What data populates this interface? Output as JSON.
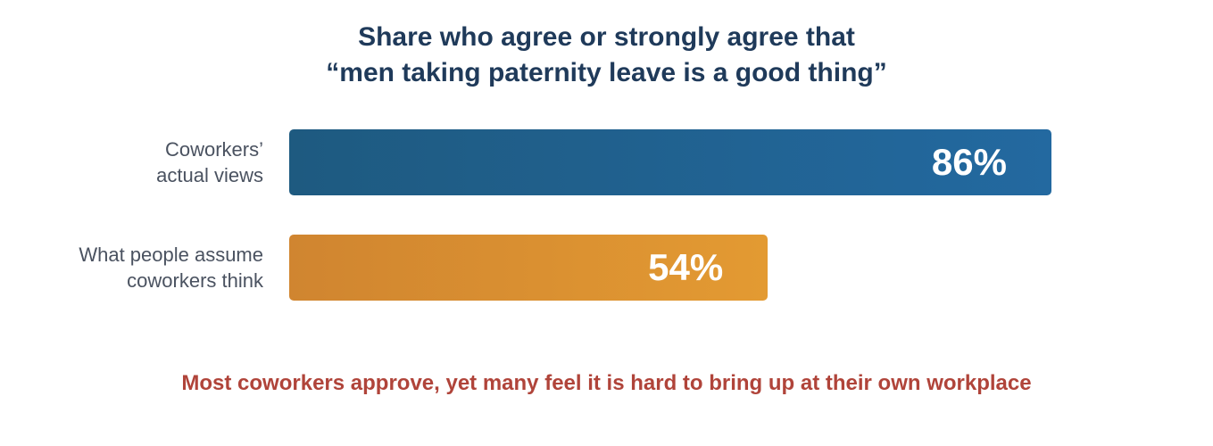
{
  "chart_data": {
    "type": "bar",
    "orientation": "horizontal",
    "title": [
      "Share who agree or strongly agree that",
      "“men taking paternity leave is a good thing”"
    ],
    "categories": [
      [
        "Coworkers’",
        "actual views"
      ],
      [
        "What people assume",
        "coworkers think"
      ]
    ],
    "values": [
      86,
      54
    ],
    "value_labels": [
      "86%",
      "54%"
    ],
    "xlim": [
      0,
      100
    ],
    "grid": false,
    "legend": "none",
    "annotation": "Most coworkers approve, yet many feel it is hard to bring up at their own workplace"
  },
  "colors": {
    "title": "#1f3a5a",
    "label": "#4a5260",
    "annotation": "#b0443a",
    "bars": [
      {
        "from": "#1e5a80",
        "to": "#2369a0"
      },
      {
        "from": "#d08530",
        "to": "#e39a32"
      }
    ]
  }
}
